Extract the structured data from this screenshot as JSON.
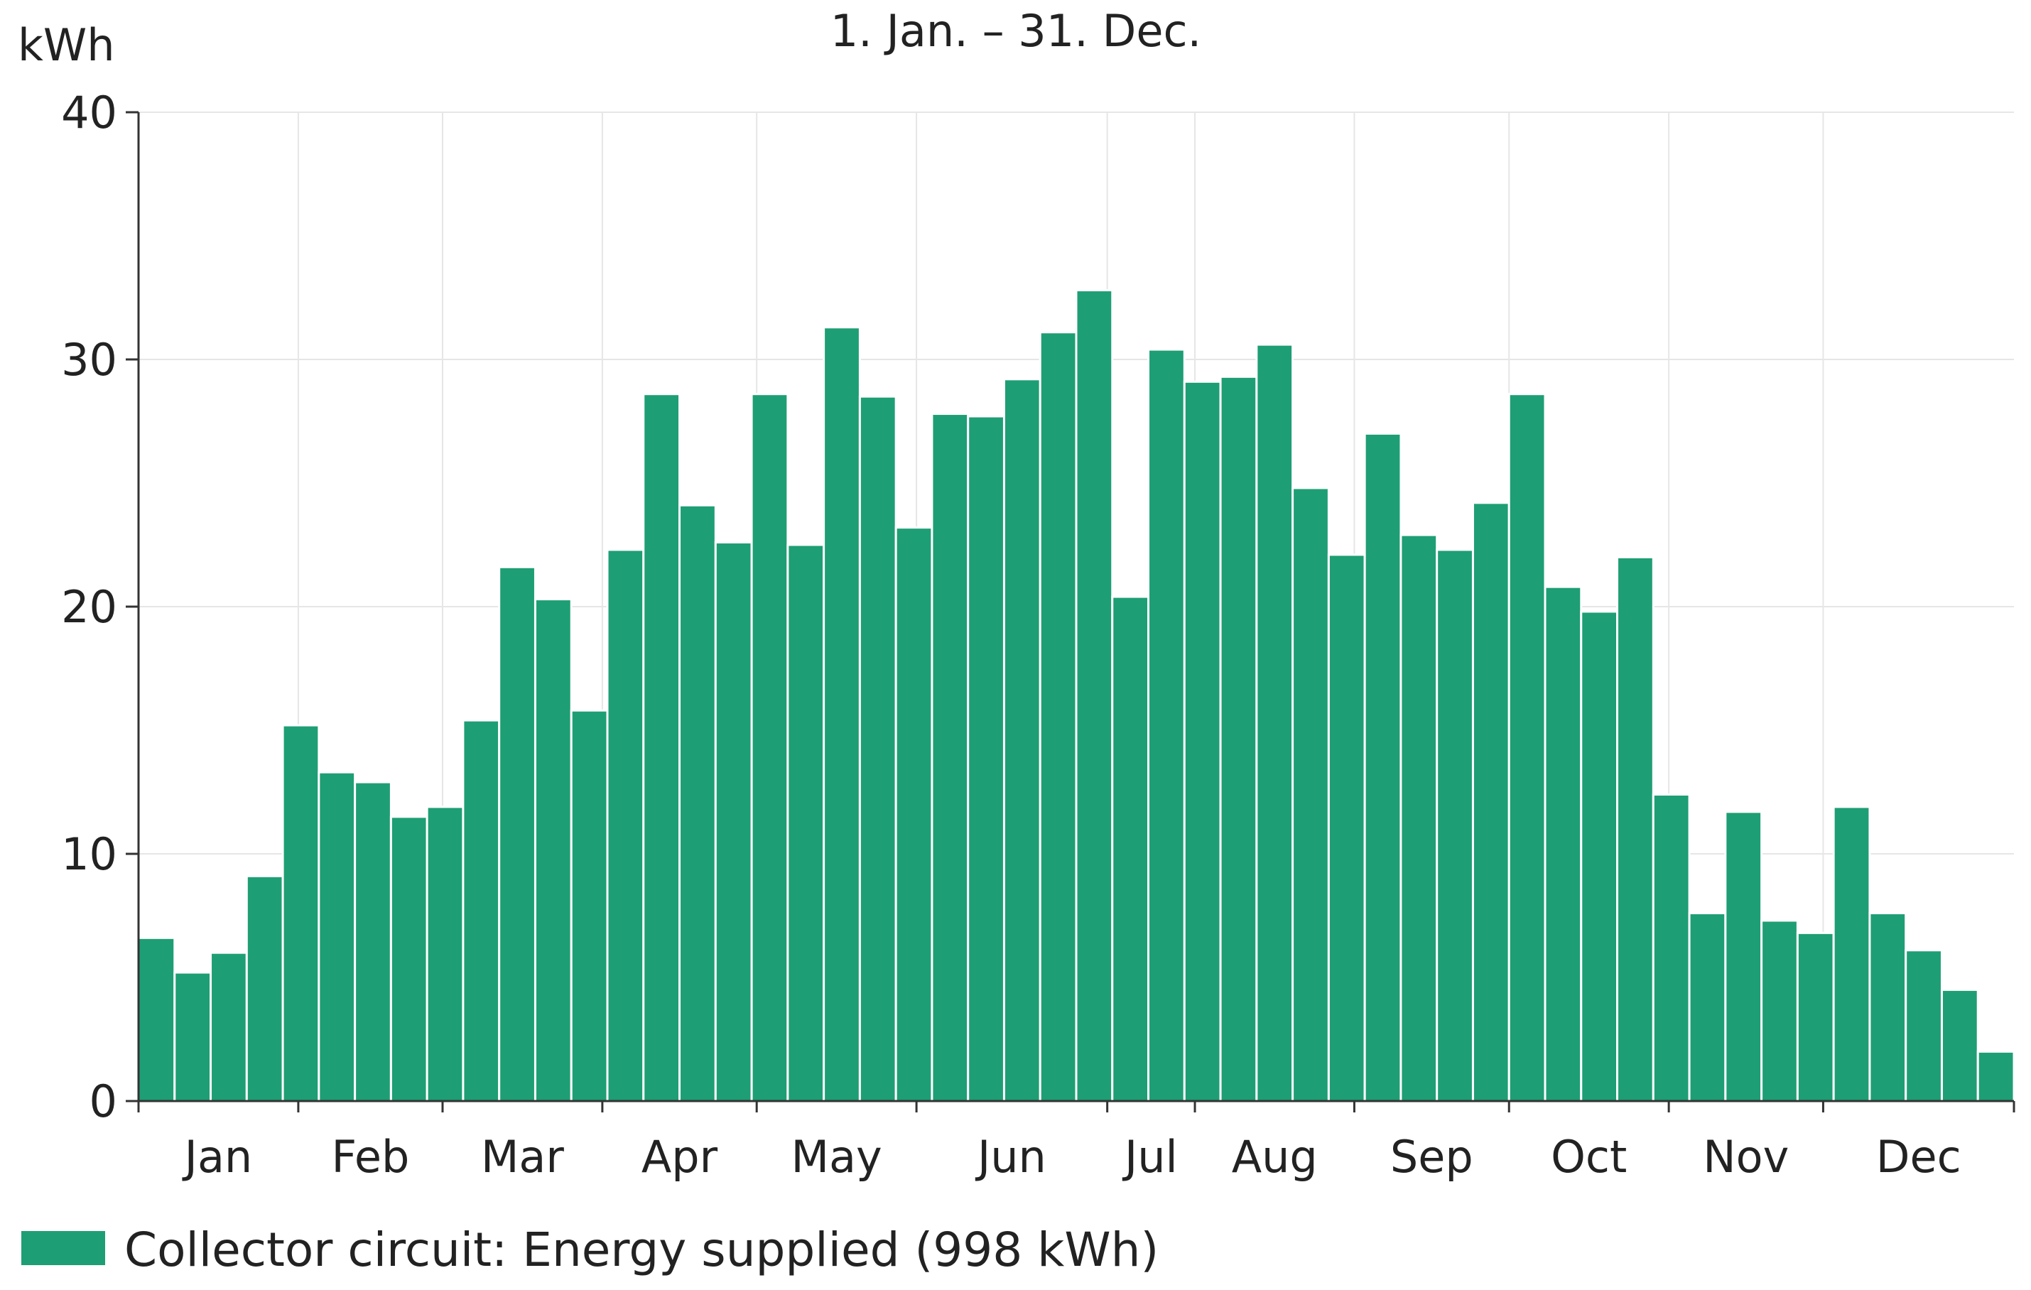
{
  "chart_data": {
    "type": "bar",
    "title": "1. Jan. – 31. Dec.",
    "ylabel": "kWh",
    "xlabel": "",
    "ylim": [
      0,
      40
    ],
    "yticks": [
      0,
      10,
      20,
      30,
      40
    ],
    "grid": true,
    "legend_placement": "bottom-left",
    "bar_color": "#1e9e74",
    "month_labels": [
      "Jan",
      "Feb",
      "Mar",
      "Apr",
      "May",
      "Jun",
      "Jul",
      "Aug",
      "Sep",
      "Oct",
      "Nov",
      "Dec"
    ],
    "series": [
      {
        "name": "Collector circuit: Energy supplied (998 kWh)",
        "values": [
          6.6,
          5.2,
          6.0,
          9.1,
          15.2,
          13.3,
          12.9,
          11.5,
          11.9,
          15.4,
          21.6,
          20.3,
          15.8,
          22.3,
          28.6,
          24.1,
          22.6,
          28.6,
          22.5,
          31.3,
          28.5,
          23.2,
          27.8,
          27.7,
          29.2,
          31.1,
          32.8,
          20.4,
          30.4,
          29.1,
          29.3,
          30.6,
          24.8,
          22.1,
          27.0,
          22.9,
          22.3,
          24.2,
          28.6,
          20.8,
          19.8,
          22.0,
          12.4,
          7.6,
          11.7,
          7.3,
          6.8,
          11.9,
          7.6,
          6.1,
          4.5,
          2.0
        ]
      }
    ]
  }
}
